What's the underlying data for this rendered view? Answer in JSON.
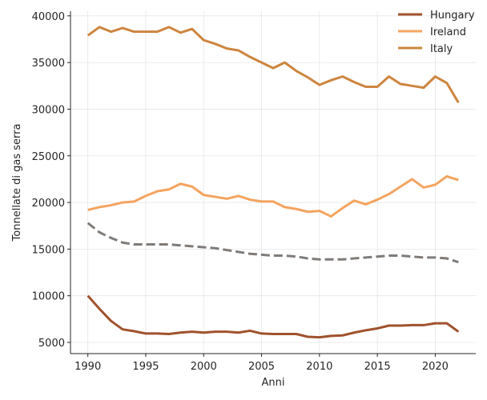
{
  "chart_data": {
    "type": "line",
    "xlabel": "Anni",
    "ylabel": "Tonnellate di gas serra",
    "xlim": [
      1988.5,
      2023.5
    ],
    "ylim": [
      3800,
      40500
    ],
    "x_ticks": [
      1990,
      1995,
      2000,
      2005,
      2010,
      2015,
      2020
    ],
    "y_ticks": [
      5000,
      10000,
      15000,
      20000,
      25000,
      30000,
      35000,
      40000
    ],
    "grid": true,
    "legend_position": "top-right",
    "x": [
      1990,
      1991,
      1992,
      1993,
      1994,
      1995,
      1996,
      1997,
      1998,
      1999,
      2000,
      2001,
      2002,
      2003,
      2004,
      2005,
      2006,
      2007,
      2008,
      2009,
      2010,
      2011,
      2012,
      2013,
      2014,
      2015,
      2016,
      2017,
      2018,
      2019,
      2020,
      2021,
      2022
    ],
    "series": [
      {
        "name": "Hungary",
        "color": "#a0522d",
        "style": "solid",
        "values": [
          10000,
          8600,
          7300,
          6400,
          6200,
          5950,
          5950,
          5900,
          6050,
          6150,
          6050,
          6150,
          6150,
          6050,
          6250,
          5950,
          5900,
          5900,
          5900,
          5600,
          5550,
          5700,
          5750,
          6050,
          6300,
          6500,
          6800,
          6800,
          6850,
          6850,
          7050,
          7050,
          6150
        ]
      },
      {
        "name": "Ireland",
        "color": "#f4a460",
        "style": "solid",
        "values": [
          19200,
          19500,
          19700,
          20000,
          20100,
          20700,
          21200,
          21400,
          22000,
          21700,
          20800,
          20600,
          20400,
          20700,
          20300,
          20100,
          20100,
          19500,
          19300,
          19000,
          19100,
          18500,
          19400,
          20200,
          19800,
          20300,
          20900,
          21700,
          22500,
          21600,
          21900,
          22800,
          22400
        ]
      },
      {
        "name": "Italy",
        "color": "#cd853f",
        "style": "solid",
        "values": [
          37900,
          38800,
          38300,
          38700,
          38300,
          38300,
          38300,
          38800,
          38200,
          38600,
          37400,
          37000,
          36500,
          36300,
          35600,
          35000,
          34400,
          35000,
          34100,
          33400,
          32600,
          33100,
          33500,
          32900,
          32400,
          32400,
          33500,
          32700,
          32500,
          32300,
          33500,
          32800,
          30700
        ]
      },
      {
        "name": "",
        "color": "#7f7b78",
        "style": "dashed",
        "values": [
          17800,
          16800,
          16200,
          15700,
          15500,
          15500,
          15500,
          15500,
          15400,
          15300,
          15200,
          15100,
          14900,
          14700,
          14500,
          14400,
          14300,
          14300,
          14200,
          14000,
          13900,
          13900,
          13900,
          14000,
          14100,
          14200,
          14300,
          14300,
          14200,
          14100,
          14100,
          14000,
          13600
        ]
      }
    ]
  }
}
